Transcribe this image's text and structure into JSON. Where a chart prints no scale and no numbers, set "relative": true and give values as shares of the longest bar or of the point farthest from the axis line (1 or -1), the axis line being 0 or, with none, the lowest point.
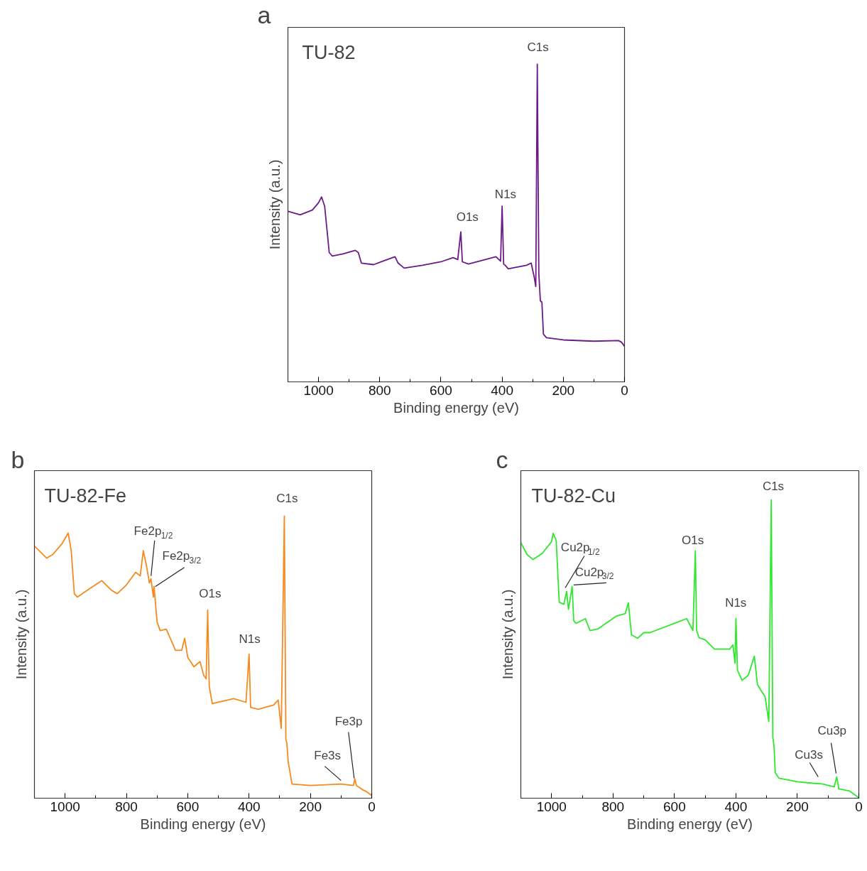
{
  "chart_data": [
    {
      "type": "line",
      "title": "a",
      "xlabel": "Binding energy (eV)",
      "ylabel": "Intensity (a.u.)",
      "relative": true,
      "xlim": [
        1100,
        0
      ],
      "xticks": [
        1000,
        800,
        600,
        400,
        200,
        0
      ],
      "annotations": [
        "TU-82",
        {
          "text": "C1s",
          "x": 285,
          "y": 1.0
        },
        {
          "text": "O1s",
          "x": 535,
          "y": 0.472
        },
        {
          "text": "N1s",
          "x": 400,
          "y": 0.553
        }
      ],
      "series": [
        {
          "color": "#6b1a8a",
          "x": [
            1100,
            1060,
            1020,
            1000,
            990,
            980,
            965,
            955,
            920,
            880,
            870,
            860,
            820,
            790,
            750,
            740,
            720,
            660,
            600,
            560,
            545,
            535,
            530,
            510,
            440,
            420,
            405,
            400,
            395,
            390,
            380,
            320,
            305,
            295,
            290,
            285,
            280,
            275,
            270,
            265,
            255,
            200,
            100,
            20,
            10,
            0
          ],
          "values": [
            0.537,
            0.526,
            0.541,
            0.564,
            0.582,
            0.553,
            0.407,
            0.396,
            0.403,
            0.414,
            0.407,
            0.374,
            0.369,
            0.38,
            0.394,
            0.374,
            0.358,
            0.367,
            0.378,
            0.391,
            0.385,
            0.472,
            0.378,
            0.371,
            0.389,
            0.394,
            0.38,
            0.553,
            0.371,
            0.367,
            0.356,
            0.367,
            0.374,
            0.329,
            0.3,
            1.0,
            0.34,
            0.255,
            0.251,
            0.15,
            0.139,
            0.132,
            0.128,
            0.13,
            0.125,
            0.112
          ]
        }
      ]
    },
    {
      "type": "line",
      "title": "b",
      "xlabel": "Binding energy (eV)",
      "ylabel": "Intensity (a.u.)",
      "relative": true,
      "xlim": [
        1100,
        0
      ],
      "xticks": [
        1000,
        800,
        600,
        400,
        200,
        0
      ],
      "annotations": [
        "TU-82-Fe",
        {
          "text": "C1s",
          "x": 285,
          "y": 1.0
        },
        {
          "text": "Fe2p$_{1/2}$",
          "x": 722,
          "y": 0.77
        },
        {
          "text": "Fe2p$_{3/2}$",
          "x": 706,
          "y": 0.75
        },
        {
          "text": "O1s",
          "x": 535,
          "y": 0.667
        },
        {
          "text": "N1s",
          "x": 400,
          "y": 0.511
        },
        {
          "text": "Fe3s",
          "x": 100,
          "y": 0.05
        },
        {
          "text": "Fe3p",
          "x": 55,
          "y": 0.068
        }
      ],
      "series": [
        {
          "color": "#f58a1f",
          "x": [
            1100,
            1060,
            1040,
            1010,
            990,
            980,
            970,
            960,
            920,
            880,
            850,
            830,
            800,
            770,
            755,
            745,
            735,
            725,
            720,
            712,
            710,
            700,
            690,
            670,
            655,
            640,
            620,
            610,
            600,
            580,
            560,
            548,
            540,
            535,
            530,
            520,
            490,
            450,
            410,
            400,
            395,
            370,
            320,
            305,
            295,
            285,
            280,
            277,
            272,
            260,
            200,
            100,
            60,
            55,
            50,
            30,
            20,
            0
          ],
          "values": [
            0.894,
            0.851,
            0.864,
            0.902,
            0.94,
            0.877,
            0.725,
            0.713,
            0.743,
            0.771,
            0.738,
            0.725,
            0.756,
            0.801,
            0.788,
            0.877,
            0.826,
            0.763,
            0.778,
            0.713,
            0.751,
            0.625,
            0.594,
            0.599,
            0.562,
            0.524,
            0.524,
            0.567,
            0.499,
            0.466,
            0.484,
            0.436,
            0.423,
            0.667,
            0.398,
            0.335,
            0.343,
            0.353,
            0.34,
            0.511,
            0.322,
            0.315,
            0.33,
            0.348,
            0.247,
            1.0,
            0.209,
            0.196,
            0.126,
            0.05,
            0.045,
            0.05,
            0.045,
            0.068,
            0.045,
            0.03,
            0.025,
            0.01
          ]
        }
      ]
    },
    {
      "type": "line",
      "title": "c",
      "xlabel": "Binding energy (eV)",
      "ylabel": "Intensity (a.u.)",
      "relative": true,
      "xlim": [
        1100,
        0
      ],
      "xticks": [
        1000,
        800,
        600,
        400,
        200,
        0
      ],
      "annotations": [
        "TU-82-Cu",
        {
          "text": "C1s",
          "x": 285,
          "y": 1.0
        },
        {
          "text": "O1s",
          "x": 532,
          "y": 0.829
        },
        {
          "text": "N1s",
          "x": 400,
          "y": 0.602
        },
        {
          "text": "Cu2p$_{1/2}$",
          "x": 951,
          "y": 0.693
        },
        {
          "text": "Cu2p$_{3/2}$",
          "x": 933,
          "y": 0.71
        },
        {
          "text": "Cu3s",
          "x": 130,
          "y": 0.05
        },
        {
          "text": "Cu3p",
          "x": 74,
          "y": 0.071
        }
      ],
      "series": [
        {
          "color": "#2ee82e",
          "x": [
            1100,
            1080,
            1060,
            1030,
            1000,
            995,
            985,
            975,
            960,
            951,
            945,
            933,
            928,
            920,
            890,
            875,
            850,
            790,
            760,
            750,
            740,
            720,
            700,
            680,
            600,
            560,
            540,
            532,
            528,
            520,
            500,
            470,
            420,
            410,
            403,
            400,
            395,
            380,
            360,
            340,
            330,
            320,
            305,
            293,
            285,
            280,
            276,
            272,
            260,
            200,
            150,
            120,
            80,
            72,
            65,
            30,
            0
          ],
          "values": [
            0.857,
            0.817,
            0.8,
            0.821,
            0.86,
            0.888,
            0.864,
            0.657,
            0.65,
            0.693,
            0.633,
            0.71,
            0.595,
            0.586,
            0.602,
            0.562,
            0.567,
            0.61,
            0.619,
            0.655,
            0.548,
            0.536,
            0.555,
            0.555,
            0.586,
            0.602,
            0.562,
            0.829,
            0.562,
            0.538,
            0.531,
            0.5,
            0.5,
            0.514,
            0.452,
            0.602,
            0.429,
            0.395,
            0.412,
            0.476,
            0.381,
            0.364,
            0.34,
            0.257,
            1.0,
            0.205,
            0.174,
            0.086,
            0.067,
            0.055,
            0.05,
            0.048,
            0.038,
            0.071,
            0.031,
            0.024,
            0.002
          ]
        }
      ]
    }
  ]
}
